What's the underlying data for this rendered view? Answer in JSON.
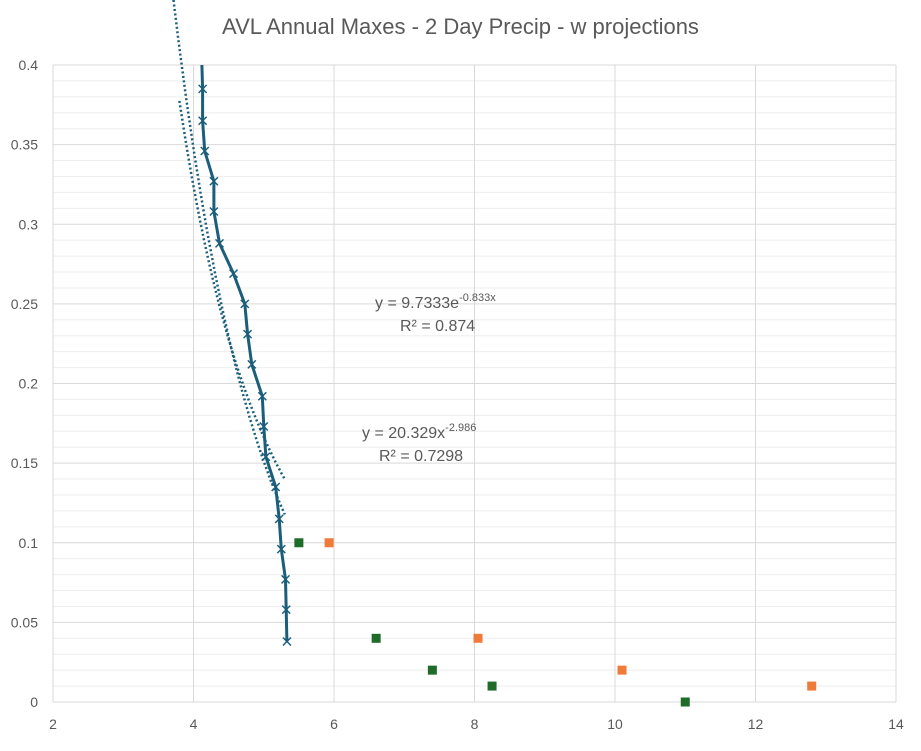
{
  "chart_data": {
    "type": "scatter",
    "title": "AVL Annual Maxes - 2 Day Precip - w projections",
    "xlabel": "",
    "ylabel": "",
    "xlim": [
      2,
      14
    ],
    "ylim": [
      0,
      0.4
    ],
    "x_ticks": [
      2,
      4,
      6,
      8,
      10,
      12,
      14
    ],
    "y_ticks": [
      0,
      0.05,
      0.1,
      0.15,
      0.2,
      0.25,
      0.3,
      0.35,
      0.4
    ],
    "x_tick_labels": [
      "2",
      "4",
      "6",
      "8",
      "10",
      "12",
      "14"
    ],
    "y_tick_labels": [
      "0",
      "0.05",
      "0.1",
      "0.15",
      "0.2",
      "0.25",
      "0.3",
      "0.35",
      "0.4"
    ],
    "grid": true,
    "legend": "none",
    "colors": {
      "observed": "#1b5e7b",
      "green_points": "#1e6b2a",
      "orange_points": "#f07a3a",
      "trend": "#1b5e7b",
      "grid": "#d9d9d9",
      "text": "#595959"
    },
    "series": [
      {
        "style": "line-with-x-markers",
        "points": [
          {
            "x": 4.12,
            "y": 0.4
          },
          {
            "x": 4.13,
            "y": 0.385
          },
          {
            "x": 4.13,
            "y": 0.365
          },
          {
            "x": 4.16,
            "y": 0.346
          },
          {
            "x": 4.29,
            "y": 0.327
          },
          {
            "x": 4.29,
            "y": 0.308
          },
          {
            "x": 4.37,
            "y": 0.288
          },
          {
            "x": 4.57,
            "y": 0.269
          },
          {
            "x": 4.73,
            "y": 0.25
          },
          {
            "x": 4.77,
            "y": 0.231
          },
          {
            "x": 4.83,
            "y": 0.212
          },
          {
            "x": 4.98,
            "y": 0.192
          },
          {
            "x": 5.0,
            "y": 0.173
          },
          {
            "x": 5.03,
            "y": 0.154
          },
          {
            "x": 5.17,
            "y": 0.135
          },
          {
            "x": 5.22,
            "y": 0.115
          },
          {
            "x": 5.25,
            "y": 0.096
          },
          {
            "x": 5.31,
            "y": 0.077
          },
          {
            "x": 5.32,
            "y": 0.058
          },
          {
            "x": 5.33,
            "y": 0.038
          }
        ]
      },
      {
        "style": "square-markers",
        "color_key": "green_points",
        "points": [
          {
            "x": 5.5,
            "y": 0.1
          },
          {
            "x": 6.6,
            "y": 0.04
          },
          {
            "x": 7.4,
            "y": 0.02
          },
          {
            "x": 8.25,
            "y": 0.01
          },
          {
            "x": 11.0,
            "y": 0.0
          }
        ]
      },
      {
        "style": "square-markers",
        "color_key": "orange_points",
        "points": [
          {
            "x": 5.93,
            "y": 0.1
          },
          {
            "x": 8.05,
            "y": 0.04
          },
          {
            "x": 10.1,
            "y": 0.02
          },
          {
            "x": 12.8,
            "y": 0.01
          }
        ]
      }
    ],
    "trendlines": [
      {
        "kind": "exponential",
        "a": 9.7333,
        "b": -0.833,
        "x_range": [
          3.7,
          5.3
        ]
      },
      {
        "kind": "power",
        "a": 20.329,
        "b": -2.986,
        "x_range": [
          3.8,
          5.3
        ]
      }
    ],
    "annotations": [
      {
        "eq_prefix": "y = 9.7333e",
        "eq_exp": "-0.833x",
        "r2": "R² = 0.874"
      },
      {
        "eq_prefix": "y = 20.329x",
        "eq_exp": "-2.986",
        "r2": "R² = 0.7298"
      }
    ]
  }
}
